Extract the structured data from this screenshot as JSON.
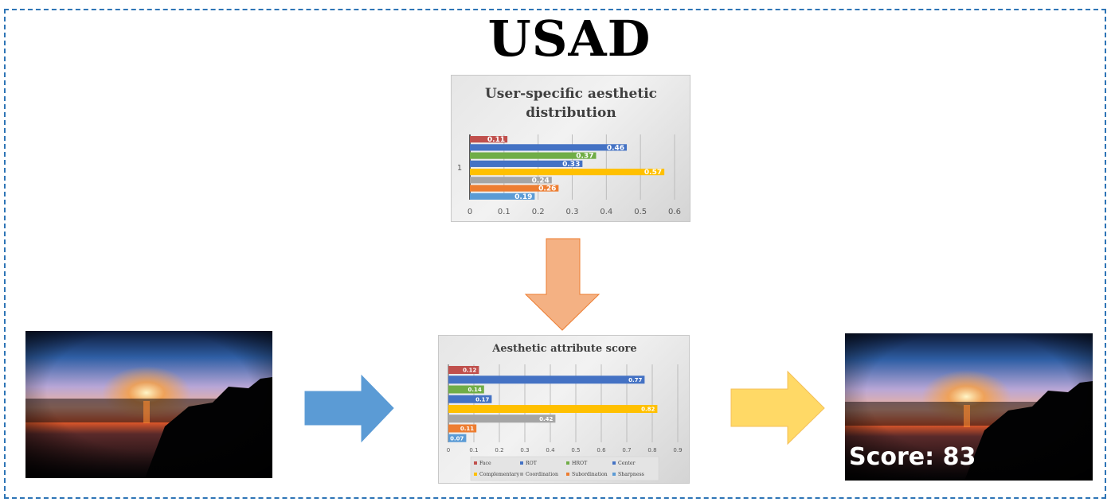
{
  "title": "USAD",
  "distribution_chart_title_line1": "User-specific aesthetic",
  "distribution_chart_title_line2": "distribution",
  "attribute_chart_title": "Aesthetic attribute score",
  "score_label": "Score: 83",
  "colors": {
    "frame": "#2e75b6",
    "arrow_down": "#f4b183",
    "arrow_down_border": "#ed7d31",
    "arrow_right_blue": "#5b9bd5",
    "arrow_right_yellow": "#ffd966"
  },
  "chart_data": [
    {
      "type": "bar",
      "orientation": "horizontal",
      "title": "User-specific aesthetic distribution",
      "category_label": "1",
      "series": [
        {
          "name": "Face",
          "value": 0.11,
          "color": "#c0504d"
        },
        {
          "name": "ROT",
          "value": 0.46,
          "color": "#4472c4"
        },
        {
          "name": "HROT",
          "value": 0.37,
          "color": "#70ad47"
        },
        {
          "name": "Center",
          "value": 0.33,
          "color": "#4472c4"
        },
        {
          "name": "Complementary",
          "value": 0.57,
          "color": "#ffc000"
        },
        {
          "name": "Coordination",
          "value": 0.24,
          "color": "#a5a5a5"
        },
        {
          "name": "Subordination",
          "value": 0.26,
          "color": "#ed7d31"
        },
        {
          "name": "Sharpness",
          "value": 0.19,
          "color": "#5b9bd5"
        }
      ],
      "xlim": [
        0,
        0.6
      ],
      "xticks": [
        "0",
        "0.1",
        "0.2",
        "0.3",
        "0.4",
        "0.5",
        "0.6"
      ],
      "grid": true,
      "legend": "none"
    },
    {
      "type": "bar",
      "orientation": "horizontal",
      "title": "Aesthetic attribute score",
      "series": [
        {
          "name": "Face",
          "value": 0.12,
          "color": "#c0504d"
        },
        {
          "name": "ROT",
          "value": 0.77,
          "color": "#4472c4"
        },
        {
          "name": "HROT",
          "value": 0.14,
          "color": "#70ad47"
        },
        {
          "name": "Center",
          "value": 0.17,
          "color": "#4472c4"
        },
        {
          "name": "Complementary",
          "value": 0.82,
          "color": "#ffc000"
        },
        {
          "name": "Coordination",
          "value": 0.42,
          "color": "#a5a5a5"
        },
        {
          "name": "Subordination",
          "value": 0.11,
          "color": "#ed7d31"
        },
        {
          "name": "Sharpness",
          "value": 0.07,
          "color": "#5b9bd5"
        }
      ],
      "xlim": [
        0,
        0.9
      ],
      "xticks": [
        "0",
        "0.1",
        "0.2",
        "0.3",
        "0.4",
        "0.5",
        "0.6",
        "0.7",
        "0.8",
        "0.9"
      ],
      "grid": true,
      "legend": "bottom"
    }
  ]
}
